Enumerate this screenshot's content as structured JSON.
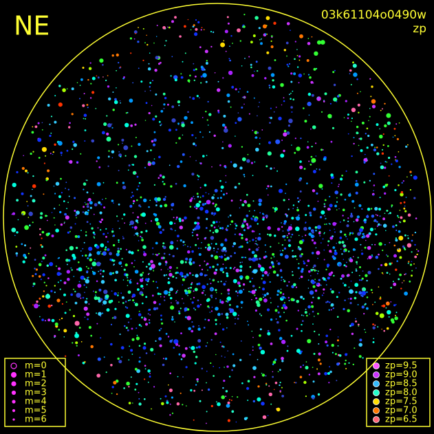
{
  "header": {
    "direction": "NE",
    "image_id": "03k61104o0490w",
    "mode": "zp"
  },
  "magnitude_legend": [
    "m=0",
    "m=1",
    "m=2",
    "m=3",
    "m=4",
    "m=5",
    "m=6"
  ],
  "zp_legend": [
    {
      "label": "zp=9.5",
      "color": "#ff55ff"
    },
    {
      "label": "zp=9.0",
      "color": "#cc33ff"
    },
    {
      "label": "zp=8.5",
      "color": "#33bbff"
    },
    {
      "label": "zp=8.0",
      "color": "#22ffcc"
    },
    {
      "label": "zp=7.5",
      "color": "#ffdd00"
    },
    {
      "label": "zp=7.0",
      "color": "#ff7700"
    },
    {
      "label": "zp=6.5",
      "color": "#ff6677"
    }
  ]
}
